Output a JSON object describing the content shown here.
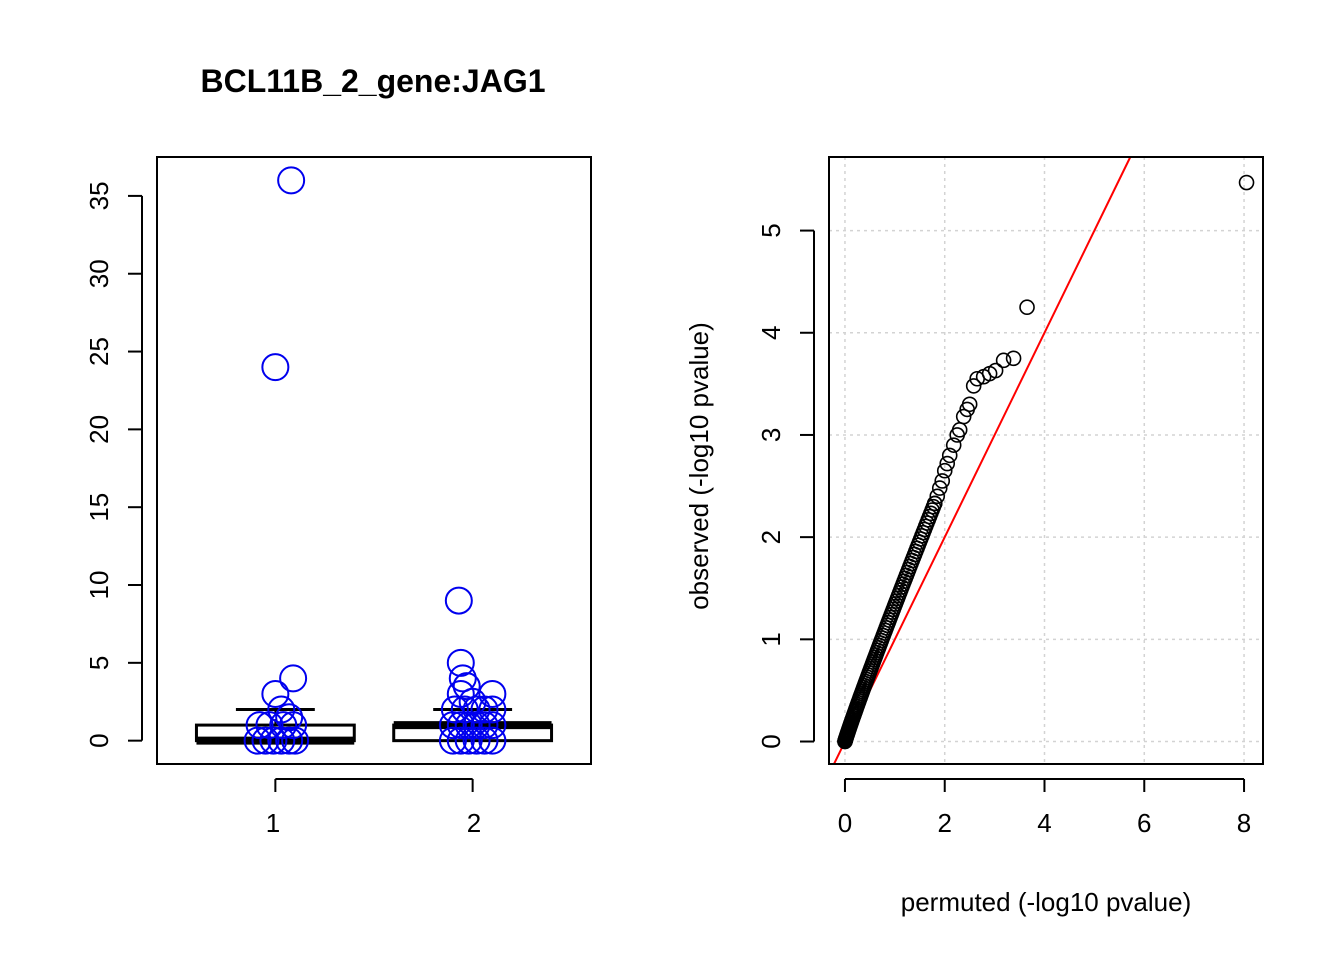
{
  "chart_data": [
    {
      "type": "box",
      "title": "BCL11B_2_gene:JAG1",
      "xlabel": "",
      "ylabel": "",
      "categories": [
        "1",
        "2"
      ],
      "ylim": [
        -1.5,
        37.5
      ],
      "yticks": [
        0,
        5,
        10,
        15,
        20,
        25,
        30,
        35
      ],
      "boxes": [
        {
          "name": "1",
          "q1": 0,
          "median": 0,
          "q3": 1,
          "whisker_low": 0,
          "whisker_high": 2
        },
        {
          "name": "2",
          "q1": 0,
          "median": 1,
          "q3": 1,
          "whisker_low": 0,
          "whisker_high": 2
        }
      ],
      "points": [
        {
          "group": 1,
          "jitter": 0.08,
          "value": 36
        },
        {
          "group": 1,
          "jitter": 0.0,
          "value": 24
        },
        {
          "group": 1,
          "jitter": 0.09,
          "value": 4
        },
        {
          "group": 1,
          "jitter": 0.0,
          "value": 3
        },
        {
          "group": 1,
          "jitter": 0.03,
          "value": 2
        },
        {
          "group": 1,
          "jitter": 0.07,
          "value": 1.5
        },
        {
          "group": 1,
          "jitter": -0.08,
          "value": 1
        },
        {
          "group": 1,
          "jitter": -0.03,
          "value": 1
        },
        {
          "group": 1,
          "jitter": 0.04,
          "value": 1
        },
        {
          "group": 1,
          "jitter": 0.09,
          "value": 1
        },
        {
          "group": 1,
          "jitter": -0.09,
          "value": 0
        },
        {
          "group": 1,
          "jitter": -0.05,
          "value": 0
        },
        {
          "group": 1,
          "jitter": -0.01,
          "value": 0
        },
        {
          "group": 1,
          "jitter": 0.03,
          "value": 0
        },
        {
          "group": 1,
          "jitter": 0.07,
          "value": 0
        },
        {
          "group": 1,
          "jitter": 0.1,
          "value": 0
        },
        {
          "group": 2,
          "jitter": -0.07,
          "value": 9
        },
        {
          "group": 2,
          "jitter": -0.06,
          "value": 5
        },
        {
          "group": 2,
          "jitter": -0.05,
          "value": 4
        },
        {
          "group": 2,
          "jitter": -0.03,
          "value": 3.5
        },
        {
          "group": 2,
          "jitter": -0.06,
          "value": 3
        },
        {
          "group": 2,
          "jitter": 0.1,
          "value": 3
        },
        {
          "group": 2,
          "jitter": 0.0,
          "value": 2.5
        },
        {
          "group": 2,
          "jitter": -0.09,
          "value": 2
        },
        {
          "group": 2,
          "jitter": -0.04,
          "value": 2
        },
        {
          "group": 2,
          "jitter": 0.02,
          "value": 2
        },
        {
          "group": 2,
          "jitter": 0.06,
          "value": 2
        },
        {
          "group": 2,
          "jitter": 0.1,
          "value": 2
        },
        {
          "group": 2,
          "jitter": -0.1,
          "value": 1
        },
        {
          "group": 2,
          "jitter": -0.06,
          "value": 1
        },
        {
          "group": 2,
          "jitter": -0.02,
          "value": 1
        },
        {
          "group": 2,
          "jitter": 0.02,
          "value": 1
        },
        {
          "group": 2,
          "jitter": 0.06,
          "value": 1
        },
        {
          "group": 2,
          "jitter": 0.1,
          "value": 1
        },
        {
          "group": 2,
          "jitter": -0.1,
          "value": 0
        },
        {
          "group": 2,
          "jitter": -0.06,
          "value": 0
        },
        {
          "group": 2,
          "jitter": -0.02,
          "value": 0
        },
        {
          "group": 2,
          "jitter": 0.02,
          "value": 0
        },
        {
          "group": 2,
          "jitter": 0.06,
          "value": 0
        },
        {
          "group": 2,
          "jitter": 0.1,
          "value": 0
        }
      ],
      "box_color": "#000000",
      "point_color": "#0000ee"
    },
    {
      "type": "scatter",
      "title": "",
      "xlabel": "permuted (-log10 pvalue)",
      "ylabel": "observed (-log10 pvalue)",
      "xlim": [
        -0.32,
        8.38
      ],
      "ylim": [
        -0.22,
        5.72
      ],
      "xticks": [
        0,
        2,
        4,
        6,
        8
      ],
      "yticks": [
        0,
        1,
        2,
        3,
        4,
        5
      ],
      "grid": true,
      "reference_line": {
        "intercept": 0,
        "slope": 1,
        "color": "#ff0000"
      },
      "outliers": [
        {
          "x": 8.05,
          "y": 5.47
        },
        {
          "x": 3.65,
          "y": 4.25
        },
        {
          "x": 3.38,
          "y": 3.75
        },
        {
          "x": 3.18,
          "y": 3.73
        },
        {
          "x": 3.02,
          "y": 3.63
        },
        {
          "x": 2.9,
          "y": 3.6
        },
        {
          "x": 2.78,
          "y": 3.57
        },
        {
          "x": 2.65,
          "y": 3.55
        },
        {
          "x": 2.58,
          "y": 3.48
        },
        {
          "x": 2.5,
          "y": 3.3
        },
        {
          "x": 2.45,
          "y": 3.25
        },
        {
          "x": 2.38,
          "y": 3.18
        },
        {
          "x": 2.3,
          "y": 3.05
        },
        {
          "x": 2.25,
          "y": 3.0
        },
        {
          "x": 2.18,
          "y": 2.9
        },
        {
          "x": 2.1,
          "y": 2.8
        },
        {
          "x": 2.05,
          "y": 2.72
        },
        {
          "x": 2.0,
          "y": 2.65
        },
        {
          "x": 1.95,
          "y": 2.55
        },
        {
          "x": 1.9,
          "y": 2.48
        },
        {
          "x": 1.85,
          "y": 2.4
        },
        {
          "x": 1.8,
          "y": 2.33
        }
      ],
      "curve": {
        "x_start": 0,
        "x_end": 1.8,
        "y_start": 0,
        "y_end": 2.33,
        "shape_power": 0.95,
        "count": 110
      },
      "point_color": "#000000"
    }
  ]
}
